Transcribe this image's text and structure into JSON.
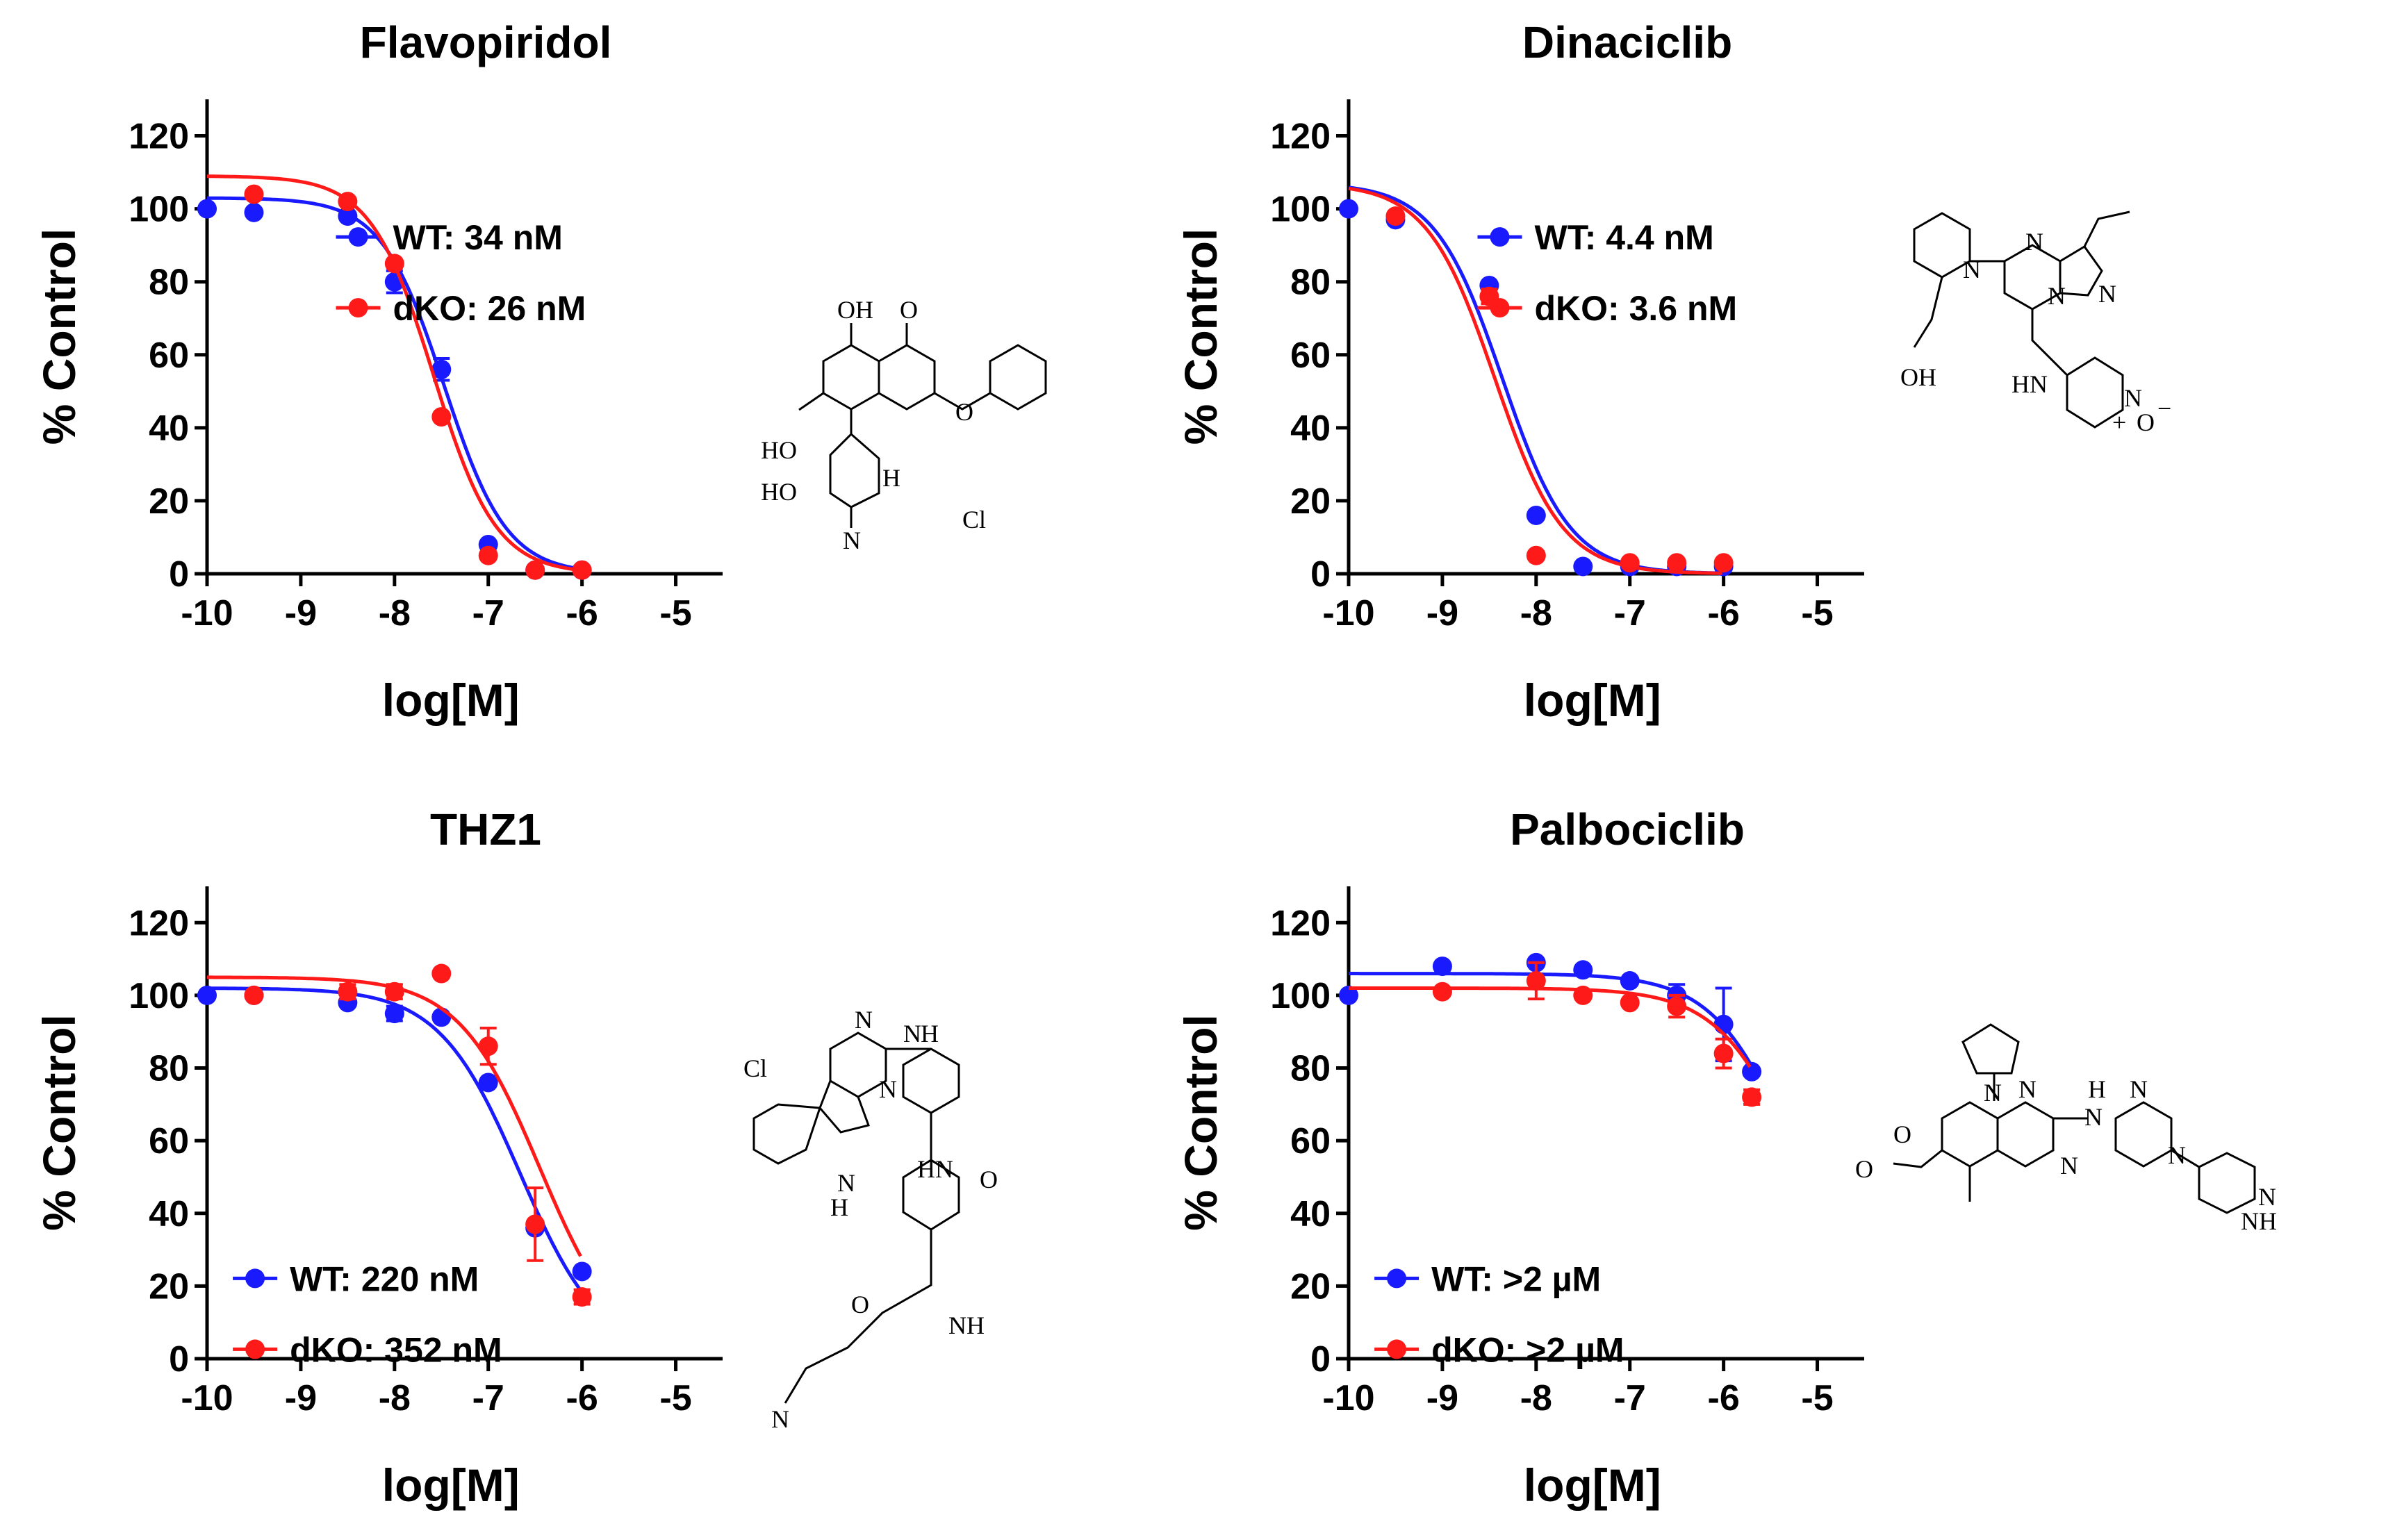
{
  "colors": {
    "wt": "#1a1aff",
    "dko": "#ff1a1a",
    "axis": "#000000"
  },
  "chart_data": [
    {
      "type": "scatter",
      "title": "Flavopiridol",
      "xlabel": "log[M]",
      "ylabel": "% Control",
      "xlim": [
        -10,
        -4.5
      ],
      "ylim": [
        0,
        130
      ],
      "xticks": [
        -10,
        -9,
        -8,
        -7,
        -6,
        -5
      ],
      "yticks": [
        0,
        20,
        40,
        60,
        80,
        100,
        120
      ],
      "legend_position": "center-right",
      "series": [
        {
          "name": "WT",
          "legend": "WT: 34 nM",
          "color": "#1a1aff",
          "x": [
            -10,
            -9.5,
            -8.5,
            -8,
            -7.5,
            -7,
            -6.5,
            -6
          ],
          "y": [
            100,
            99,
            98,
            80,
            56,
            8,
            1,
            1
          ],
          "err": [
            0,
            0,
            0,
            3,
            3,
            0,
            0,
            0
          ],
          "fit": {
            "top": 103,
            "bottom": 0,
            "logEC50": -7.47,
            "hill": 1.3
          }
        },
        {
          "name": "dKO",
          "legend": "dKO: 26 nM",
          "color": "#ff1a1a",
          "x": [
            -9.5,
            -8.5,
            -8,
            -7.5,
            -7,
            -6.5,
            -6
          ],
          "y": [
            104,
            102,
            85,
            43,
            5,
            1,
            1
          ],
          "err": [
            0,
            0,
            0,
            0,
            0,
            0,
            0
          ],
          "fit": {
            "top": 109,
            "bottom": 0,
            "logEC50": -7.585,
            "hill": 1.3
          }
        }
      ]
    },
    {
      "type": "scatter",
      "title": "Dinaciclib",
      "xlabel": "log[M]",
      "ylabel": "% Control",
      "xlim": [
        -10,
        -4.5
      ],
      "ylim": [
        0,
        130
      ],
      "xticks": [
        -10,
        -9,
        -8,
        -7,
        -6,
        -5
      ],
      "yticks": [
        0,
        20,
        40,
        60,
        80,
        100,
        120
      ],
      "legend_position": "center-right",
      "series": [
        {
          "name": "WT",
          "legend": "WT: 4.4 nM",
          "color": "#1a1aff",
          "x": [
            -10,
            -9.5,
            -8.5,
            -8,
            -7.5,
            -7,
            -6.5,
            -6
          ],
          "y": [
            100,
            97,
            79,
            16,
            2,
            2,
            2,
            2
          ],
          "err": [
            0,
            0,
            0,
            0,
            0,
            0,
            0,
            0
          ],
          "fit": {
            "top": 107,
            "bottom": 0,
            "logEC50": -8.36,
            "hill": 1.2
          }
        },
        {
          "name": "dKO",
          "legend": "dKO: 3.6 nM",
          "color": "#ff1a1a",
          "x": [
            -9.5,
            -8.5,
            -8,
            -7,
            -6.5,
            -6
          ],
          "y": [
            98,
            76,
            5,
            3,
            3,
            3
          ],
          "err": [
            0,
            2,
            0,
            0,
            0,
            0
          ],
          "fit": {
            "top": 107,
            "bottom": 0,
            "logEC50": -8.44,
            "hill": 1.2
          }
        }
      ]
    },
    {
      "type": "scatter",
      "title": "THZ1",
      "xlabel": "log[M]",
      "ylabel": "% Control",
      "xlim": [
        -10,
        -4.5
      ],
      "ylim": [
        0,
        130
      ],
      "xticks": [
        -10,
        -9,
        -8,
        -7,
        -6,
        -5
      ],
      "yticks": [
        0,
        20,
        40,
        60,
        80,
        100,
        120
      ],
      "legend_position": "bottom-left",
      "series": [
        {
          "name": "WT",
          "legend": "WT: 220 nM",
          "color": "#1a1aff",
          "x": [
            -10,
            -9.5,
            -8.5,
            -8,
            -7.5,
            -7,
            -6.5,
            -6
          ],
          "y": [
            100,
            100,
            98,
            95,
            94,
            76,
            36,
            24
          ],
          "err": [
            0,
            0,
            0,
            2,
            0,
            0,
            0,
            0
          ],
          "fit": {
            "top": 102,
            "bottom": 0,
            "logEC50": -6.66,
            "hill": 1.0
          }
        },
        {
          "name": "dKO",
          "legend": "dKO: 352 nM",
          "color": "#ff1a1a",
          "x": [
            -9.5,
            -8.5,
            -8,
            -7.5,
            -7,
            -6.5,
            -6
          ],
          "y": [
            100,
            101,
            101,
            106,
            86,
            37,
            17
          ],
          "err": [
            0,
            2,
            2,
            0,
            5,
            10,
            2
          ],
          "fit": {
            "top": 105,
            "bottom": 0,
            "logEC50": -6.45,
            "hill": 1.0
          }
        }
      ]
    },
    {
      "type": "scatter",
      "title": "Palbociclib",
      "xlabel": "log[M]",
      "ylabel": "% Control",
      "xlim": [
        -10,
        -4.5
      ],
      "ylim": [
        0,
        130
      ],
      "xticks": [
        -10,
        -9,
        -8,
        -7,
        -6,
        -5
      ],
      "yticks": [
        0,
        20,
        40,
        60,
        80,
        100,
        120
      ],
      "legend_position": "bottom-left",
      "series": [
        {
          "name": "WT",
          "legend": "WT: >2 µM",
          "color": "#1a1aff",
          "x": [
            -10,
            -9,
            -8,
            -7.5,
            -7,
            -6.5,
            -6,
            -5.7
          ],
          "y": [
            100,
            108,
            109,
            107,
            104,
            100,
            92,
            79
          ],
          "err": [
            0,
            0,
            0,
            0,
            0,
            3,
            10,
            0
          ],
          "fit": {
            "top": 106,
            "bottom": 0,
            "logEC50": -5.2,
            "hill": 1.0
          }
        },
        {
          "name": "dKO",
          "legend": "dKO: >2 µM",
          "color": "#ff1a1a",
          "x": [
            -9,
            -8,
            -7.5,
            -7,
            -6.5,
            -6,
            -5.7
          ],
          "y": [
            101,
            104,
            100,
            98,
            97,
            84,
            72
          ],
          "err": [
            0,
            5,
            0,
            0,
            3,
            4,
            2
          ],
          "fit": {
            "top": 102,
            "bottom": 0,
            "logEC50": -5.15,
            "hill": 1.0
          }
        }
      ]
    }
  ],
  "structures": [
    {
      "name": "flavopiridol-structure",
      "atoms": [
        "OH",
        "O",
        "HO",
        "O",
        "HO",
        "H",
        "Cl",
        "N"
      ]
    },
    {
      "name": "dinaciclib-structure",
      "atoms": [
        "N",
        "N",
        "N",
        "N",
        "OH",
        "HN",
        "N",
        "+",
        "O",
        "−"
      ]
    },
    {
      "name": "thz1-structure",
      "atoms": [
        "N",
        "H",
        "Cl",
        "N",
        "N",
        "HN",
        "O",
        "N",
        "H",
        "O",
        "NH",
        "N"
      ]
    },
    {
      "name": "palbociclib-structure",
      "atoms": [
        "H",
        "N",
        "O",
        "N",
        "N",
        "N",
        "N",
        "N",
        "N",
        "NH",
        "O"
      ]
    }
  ]
}
